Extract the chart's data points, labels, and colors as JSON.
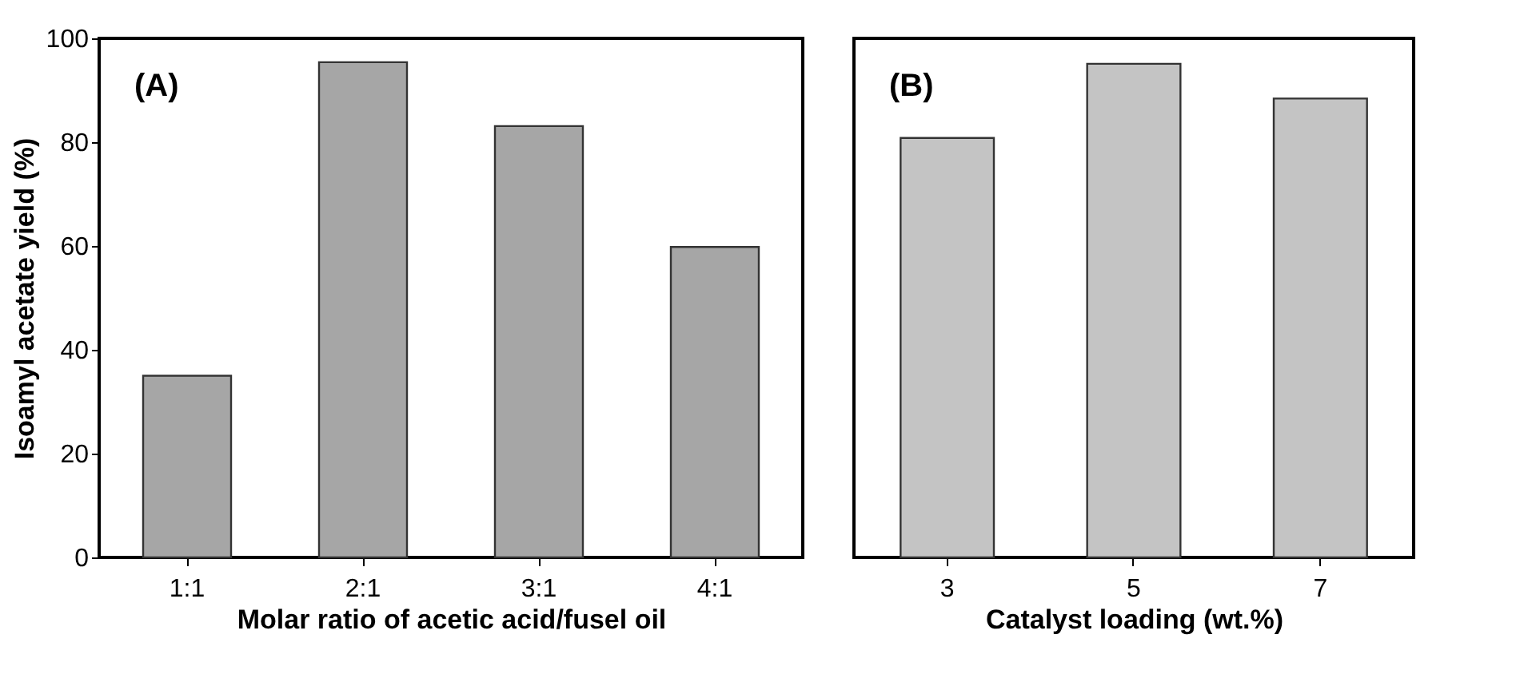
{
  "chart_data": [
    {
      "type": "bar",
      "annotations": [
        "(A)"
      ],
      "ylabel": "Isoamyl acetate yield (%)",
      "xlabel": "Molar ratio of acetic acid/fusel oil",
      "categories": [
        "1:1",
        "2:1",
        "3:1",
        "4:1"
      ],
      "values": [
        35,
        95.4,
        83.1,
        59.8
      ],
      "color": "#a6a6a6",
      "ylim": [
        0,
        100
      ],
      "yticks": [
        0,
        20,
        40,
        60,
        80,
        100
      ],
      "grid": false
    },
    {
      "type": "bar",
      "annotations": [
        "(B)"
      ],
      "xlabel": "Catalyst loading (wt.%)",
      "categories": [
        "3",
        "5",
        "7"
      ],
      "values": [
        80.8,
        95.1,
        88.4
      ],
      "color": "#c4c4c4",
      "ylim": [
        0,
        100
      ],
      "tick_labels": "x",
      "grid": false
    }
  ]
}
